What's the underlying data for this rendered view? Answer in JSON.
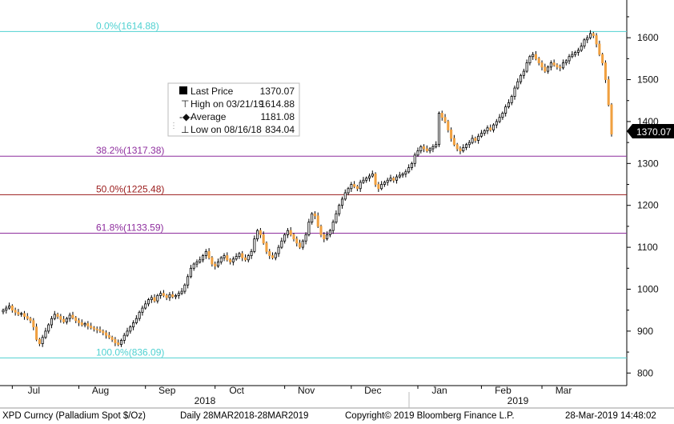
{
  "chart_data": {
    "type": "candlestick",
    "ticker_line": "XPD Curncy (Palladium Spot  $/Oz)",
    "range_line": "Daily 28MAR2018-28MAR2019",
    "copyright": "Copyright© 2019 Bloomberg Finance L.P.",
    "timestamp": "28-Mar-2019 14:48:02",
    "ylim": [
      770,
      1690
    ],
    "y_ticks": [
      800,
      900,
      1000,
      1100,
      1200,
      1300,
      1400,
      1500,
      1600
    ],
    "months": [
      "Jul",
      "Aug",
      "Sep",
      "Oct",
      "Nov",
      "Dec",
      "Jan",
      "Feb",
      "Mar"
    ],
    "years": [
      "2018",
      "2019"
    ],
    "legend": {
      "last_price_label": "Last Price",
      "last_price_value": "1370.07",
      "high_label": "High on 03/21/19",
      "high_value": "1614.88",
      "average_label": "Average",
      "average_value": "1181.08",
      "low_label": "Low on 08/16/18",
      "low_value": "834.04"
    },
    "last_price_tag": "1370.07",
    "fib_levels": [
      {
        "label": "0.0%(1614.88)",
        "value": 1614.88,
        "color": "#4fd1d1"
      },
      {
        "label": "38.2%(1317.38)",
        "value": 1317.38,
        "color": "#8e2e9e"
      },
      {
        "label": "50.0%(1225.48)",
        "value": 1225.48,
        "color": "#9a1a1a"
      },
      {
        "label": "61.8%(1133.59)",
        "value": 1133.59,
        "color": "#8e2e9e"
      },
      {
        "label": "100.0%(836.09)",
        "value": 836.09,
        "color": "#4fd1d1"
      }
    ],
    "colors": {
      "up": "#ffffff",
      "down": "#f0a040",
      "wick": "#000000"
    },
    "close": [
      950,
      955,
      960,
      950,
      945,
      940,
      942,
      935,
      930,
      925,
      910,
      880,
      870,
      885,
      900,
      915,
      930,
      940,
      935,
      928,
      922,
      930,
      938,
      932,
      925,
      920,
      915,
      918,
      912,
      908,
      905,
      903,
      900,
      896,
      890,
      885,
      880,
      872,
      868,
      878,
      890,
      900,
      910,
      920,
      930,
      945,
      955,
      965,
      975,
      980,
      972,
      985,
      990,
      985,
      980,
      987,
      982,
      985,
      990,
      995,
      1010,
      1030,
      1050,
      1060,
      1065,
      1070,
      1080,
      1090,
      1075,
      1060,
      1055,
      1065,
      1075,
      1080,
      1070,
      1065,
      1072,
      1078,
      1085,
      1075,
      1070,
      1080,
      1090,
      1120,
      1140,
      1130,
      1110,
      1090,
      1080,
      1075,
      1085,
      1100,
      1115,
      1130,
      1140,
      1130,
      1120,
      1110,
      1100,
      1115,
      1130,
      1160,
      1180,
      1175,
      1150,
      1130,
      1120,
      1130,
      1140,
      1160,
      1180,
      1200,
      1215,
      1230,
      1240,
      1250,
      1245,
      1240,
      1255,
      1260,
      1265,
      1270,
      1275,
      1250,
      1240,
      1250,
      1255,
      1260,
      1265,
      1260,
      1268,
      1272,
      1275,
      1280,
      1290,
      1300,
      1320,
      1330,
      1340,
      1335,
      1330,
      1335,
      1340,
      1345,
      1420,
      1410,
      1400,
      1380,
      1360,
      1345,
      1335,
      1330,
      1338,
      1345,
      1350,
      1360,
      1355,
      1365,
      1372,
      1378,
      1385,
      1380,
      1392,
      1400,
      1410,
      1420,
      1435,
      1445,
      1460,
      1480,
      1495,
      1510,
      1520,
      1540,
      1555,
      1560,
      1550,
      1540,
      1530,
      1520,
      1530,
      1540,
      1535,
      1530,
      1528,
      1540,
      1545,
      1555,
      1560,
      1565,
      1570,
      1580,
      1595,
      1600,
      1610,
      1605,
      1585,
      1560,
      1540,
      1500,
      1440,
      1370.07
    ]
  }
}
